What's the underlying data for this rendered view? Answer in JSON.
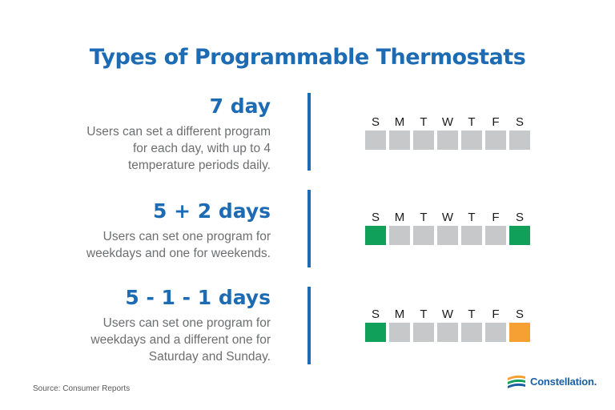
{
  "title": "Types of Programmable Thermostats",
  "colors": {
    "brand_blue": "#1c6bb3",
    "box_gray": "#c7c8ca",
    "weekday_green": "#10a05a",
    "weekend_orange": "#f6a033",
    "text_gray": "#6d6e70"
  },
  "rows": [
    {
      "heading": "7 day",
      "desc": [
        "Users can set a different program",
        "for each day, with up to 4",
        "temperature periods daily."
      ],
      "days": [
        "S",
        "M",
        "T",
        "W",
        "T",
        "F",
        "S"
      ],
      "box_colors": [
        "gray",
        "gray",
        "gray",
        "gray",
        "gray",
        "gray",
        "gray"
      ]
    },
    {
      "heading": "5 + 2 days",
      "desc": [
        "Users can set one program for",
        "weekdays and one for weekends."
      ],
      "days": [
        "S",
        "M",
        "T",
        "W",
        "T",
        "F",
        "S"
      ],
      "box_colors": [
        "green",
        "gray",
        "gray",
        "gray",
        "gray",
        "gray",
        "green"
      ]
    },
    {
      "heading": "5 - 1 - 1 days",
      "desc": [
        "Users can set one program for",
        "weekdays and a different one for",
        "Saturday and Sunday."
      ],
      "days": [
        "S",
        "M",
        "T",
        "W",
        "T",
        "F",
        "S"
      ],
      "box_colors": [
        "green",
        "gray",
        "gray",
        "gray",
        "gray",
        "gray",
        "orange"
      ]
    }
  ],
  "source": "Source: Consumer Reports",
  "logo": {
    "text": "Constellation.",
    "icon": "constellation-logo-icon"
  }
}
